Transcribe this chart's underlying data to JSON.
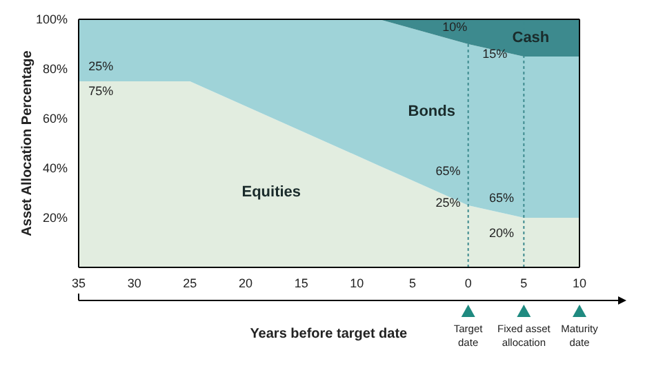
{
  "chart_data": {
    "type": "area",
    "stacked": true,
    "xlabel": "Years before target date",
    "ylabel": "Asset Allocation Percentage",
    "x": [
      -35,
      -25,
      -8,
      0,
      5,
      10
    ],
    "series": [
      {
        "name": "Equities",
        "color": "#e2ede0",
        "values": [
          75,
          75,
          41,
          25,
          20,
          20
        ]
      },
      {
        "name": "Bonds",
        "color": "#9fd3d8",
        "values": [
          25,
          25,
          59,
          65,
          65,
          65
        ]
      },
      {
        "name": "Cash",
        "color": "#3d8a8e",
        "values": [
          0,
          0,
          0,
          10,
          15,
          15
        ]
      }
    ],
    "xlim": [
      -35,
      10
    ],
    "xticks": [
      {
        "value": -35,
        "label": "35"
      },
      {
        "value": -30,
        "label": "30"
      },
      {
        "value": -25,
        "label": "25"
      },
      {
        "value": -20,
        "label": "20"
      },
      {
        "value": -15,
        "label": "15"
      },
      {
        "value": -10,
        "label": "10"
      },
      {
        "value": -5,
        "label": "5"
      },
      0,
      5,
      10
    ],
    "ylim": [
      0,
      100
    ],
    "yticks": [
      {
        "value": 20,
        "label": "20%"
      },
      {
        "value": 40,
        "label": "40%"
      },
      {
        "value": 60,
        "label": "60%"
      },
      {
        "value": 80,
        "label": "80%"
      },
      {
        "value": 100,
        "label": "100%"
      }
    ],
    "ref_lines": [
      {
        "axis": "x",
        "value": 0,
        "color": "#3d8a8e",
        "line_style": "dotted"
      },
      {
        "axis": "x",
        "value": 5,
        "color": "#3d8a8e",
        "line_style": "dotted"
      }
    ],
    "annotations": [
      "25%",
      "75%",
      "10%",
      "15%",
      "65%",
      "25%",
      "65%",
      "20%",
      "Target date",
      "Fixed asset allocation",
      "Maturity date"
    ]
  }
}
